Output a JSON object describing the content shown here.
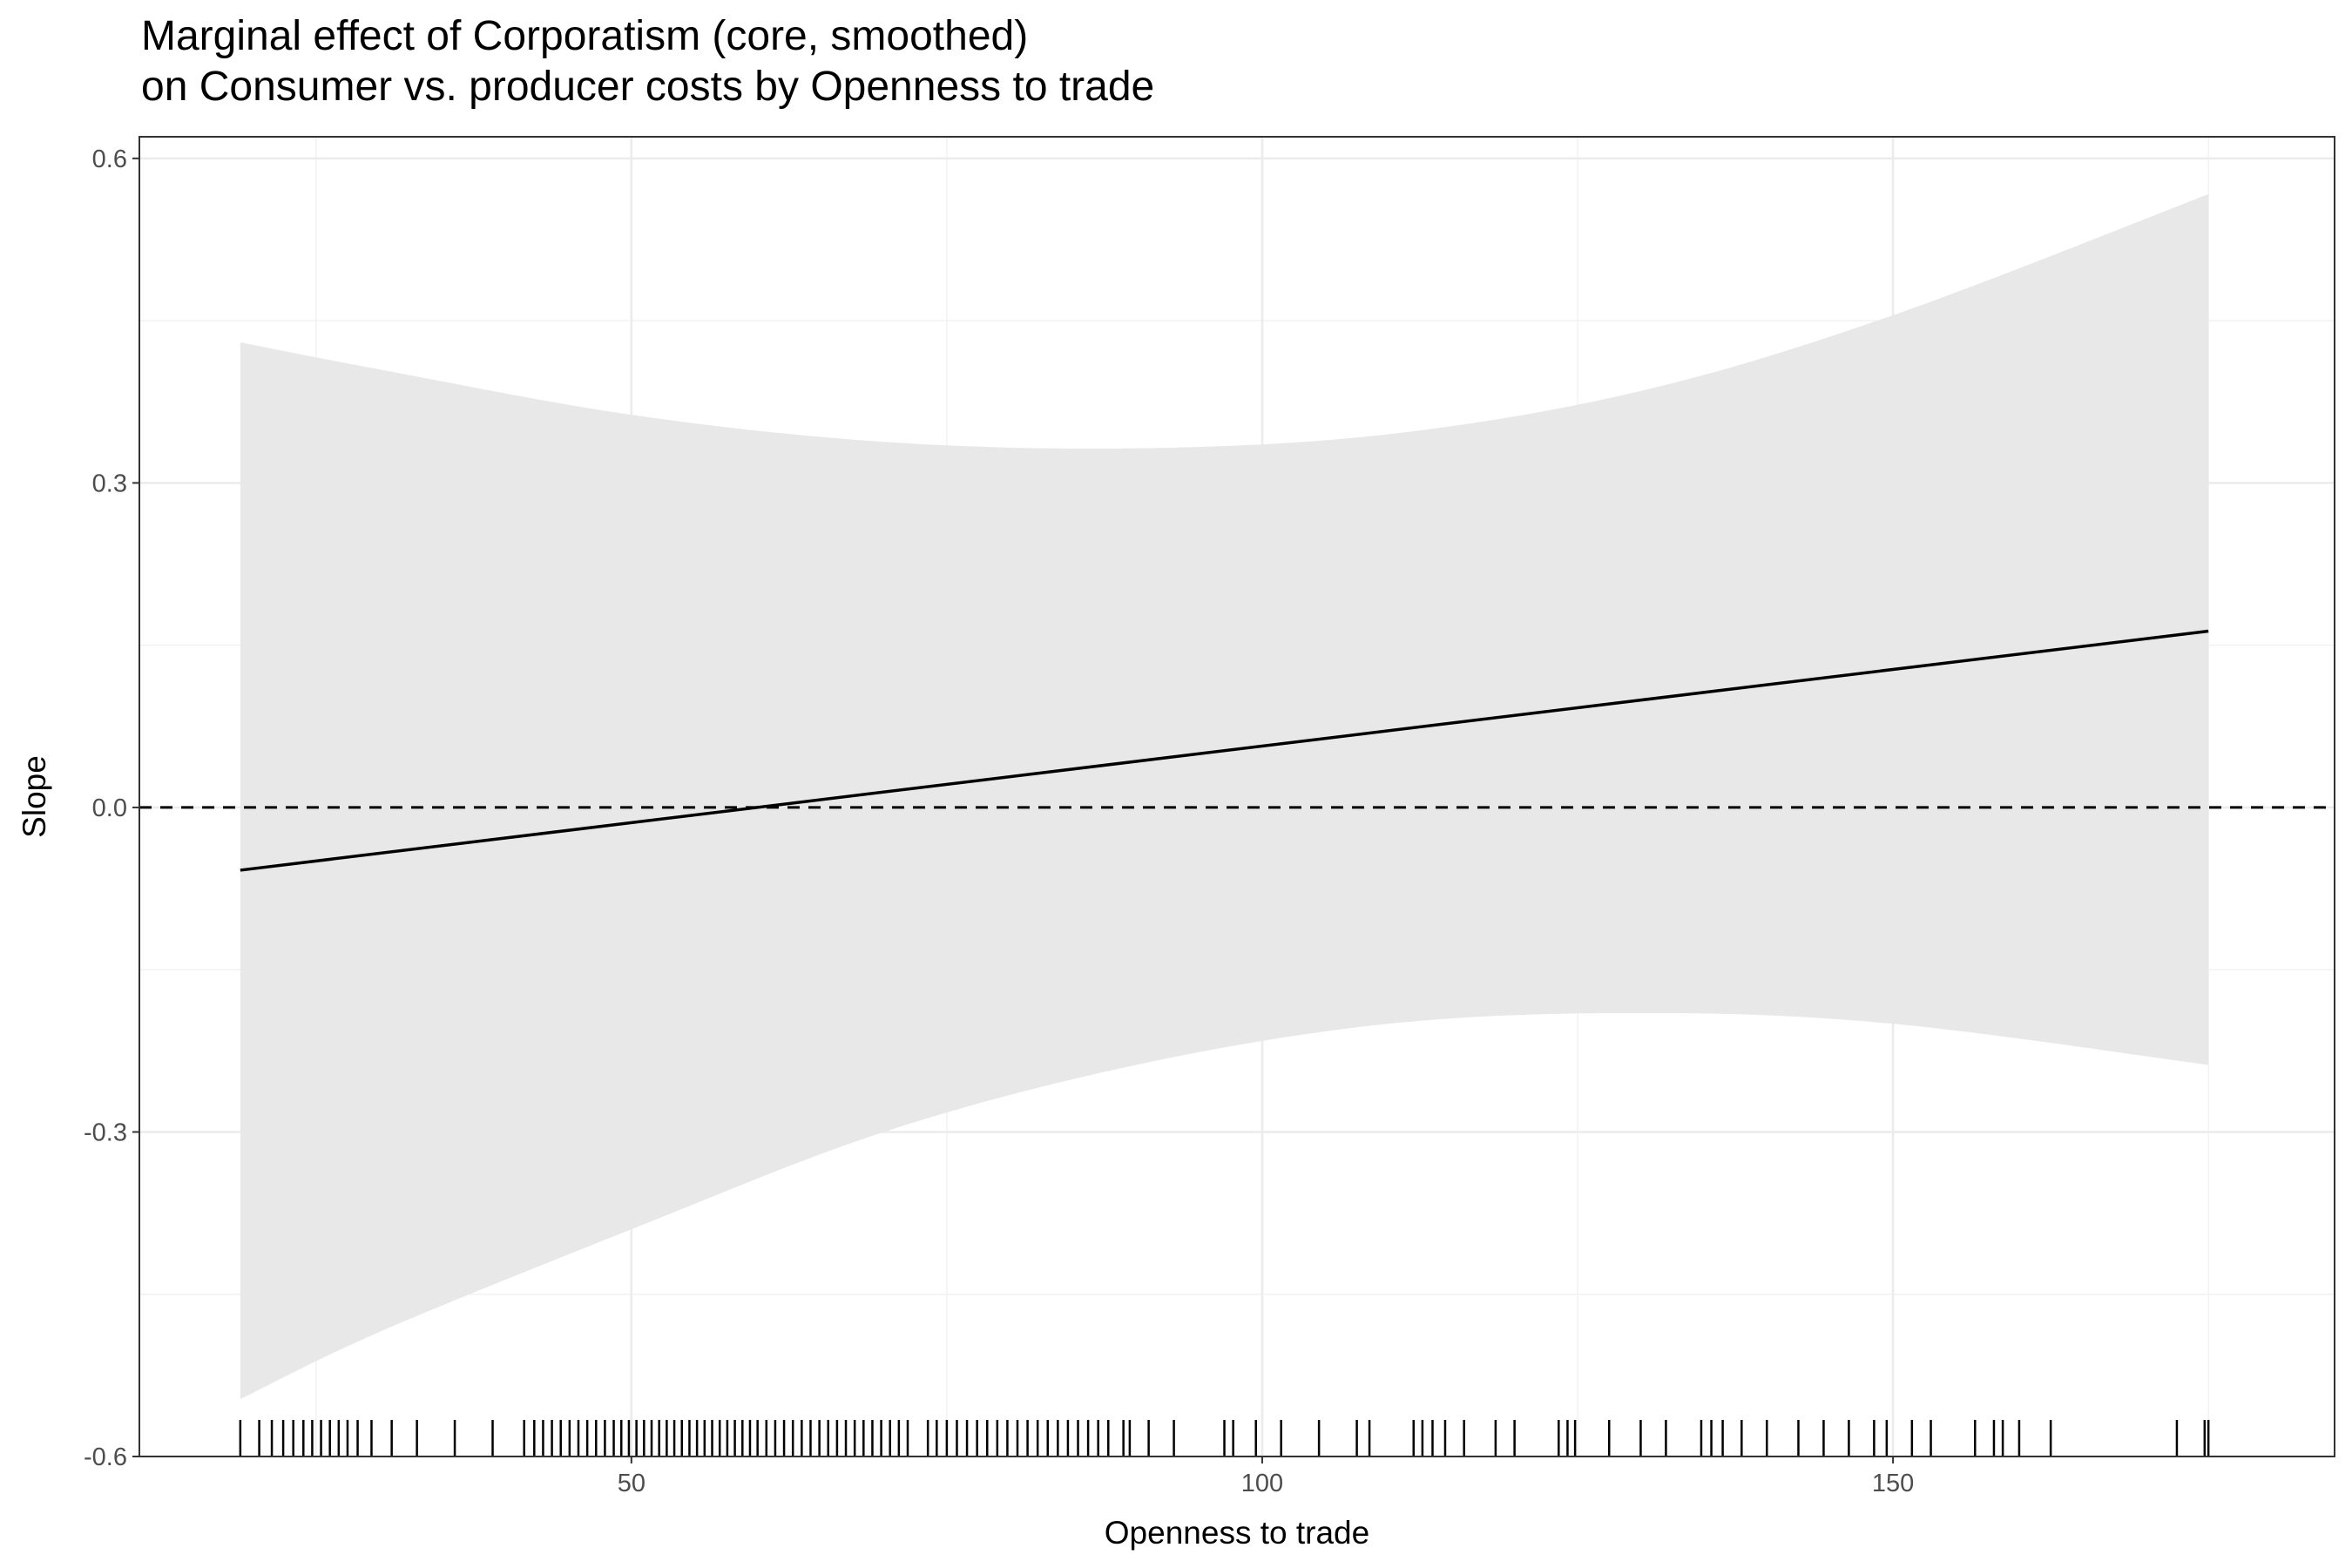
{
  "chart_data": {
    "type": "line",
    "title_lines": [
      "Marginal effect of Corporatism (core, smoothed)",
      "on Consumer vs. producer costs by Openness to trade"
    ],
    "xlabel": "Openness to trade",
    "ylabel": "Slope",
    "xlim": [
      11,
      185
    ],
    "ylim": [
      -0.6,
      0.62
    ],
    "x_ticks": [
      50,
      100,
      150
    ],
    "x_tick_labels": [
      "50",
      "100",
      "150"
    ],
    "y_ticks": [
      -0.6,
      -0.3,
      0.0,
      0.3,
      0.6
    ],
    "y_tick_labels": [
      "-0.6",
      "-0.3",
      "0.0",
      "0.3",
      "0.6"
    ],
    "grid": true,
    "reference_line": {
      "y": 0,
      "style": "dashed"
    },
    "series": [
      {
        "x": [
          19,
          175
        ],
        "y": [
          -0.058,
          0.163
        ]
      }
    ],
    "ribbon": {
      "x": [
        19,
        30,
        50,
        70,
        90,
        110,
        130,
        150,
        175
      ],
      "lower": [
        -0.547,
        -0.485,
        -0.39,
        -0.3,
        -0.238,
        -0.2,
        -0.19,
        -0.2,
        -0.238
      ],
      "upper": [
        0.43,
        0.405,
        0.363,
        0.338,
        0.332,
        0.345,
        0.385,
        0.455,
        0.567
      ]
    },
    "rug_x": [
      19,
      20.5,
      21.5,
      22.4,
      23.2,
      24,
      24.7,
      25.4,
      26.1,
      26.8,
      27.5,
      28.3,
      29.4,
      31,
      33,
      36,
      39,
      41.5,
      42.3,
      43,
      43.7,
      44.4,
      45.1,
      45.8,
      46.5,
      47.2,
      47.9,
      48.6,
      49.2,
      49.8,
      50.4,
      51,
      51.6,
      52.2,
      52.8,
      53.4,
      54,
      54.6,
      55.2,
      55.8,
      56.4,
      57,
      57.6,
      58.2,
      58.8,
      59.4,
      60,
      60.7,
      61.4,
      62.1,
      62.8,
      63.5,
      64.2,
      64.9,
      65.6,
      66.3,
      67,
      67.7,
      68.4,
      69.1,
      69.8,
      70.5,
      71.2,
      71.9,
      73.5,
      74.2,
      75,
      75.8,
      76.6,
      77.4,
      78.2,
      79,
      79.8,
      80.6,
      81.4,
      82.2,
      83,
      83.8,
      84.6,
      85.4,
      86.2,
      87,
      87.8,
      89,
      89.5,
      91,
      93,
      97,
      97.7,
      99.5,
      101.5,
      104.5,
      107.5,
      108.5,
      112,
      112.7,
      113.5,
      114.5,
      116,
      118.5,
      120,
      123.5,
      124.2,
      124.8,
      127.5,
      130,
      132,
      134.8,
      135.6,
      136.5,
      138,
      140,
      142.5,
      144.5,
      146.5,
      148.5,
      149.5,
      151.5,
      153,
      156.5,
      158,
      158.7,
      160,
      162.5,
      172.5,
      174.7,
      175
    ]
  }
}
